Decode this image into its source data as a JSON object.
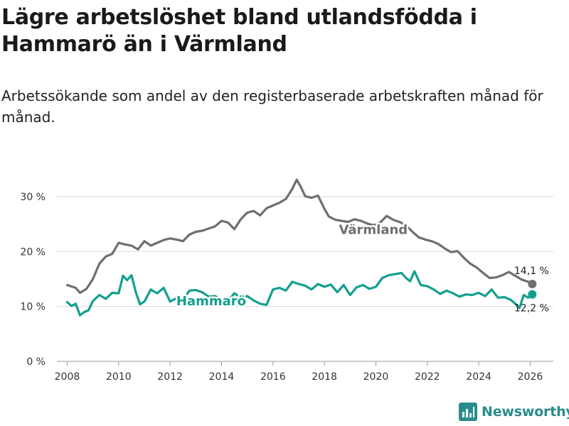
{
  "header": {
    "title": "Lägre arbetslöshet bland utlandsfödda i Hammarö än i Värmland",
    "subtitle": "Arbetssökande som andel av den registerbaserade arbetskraften månad för månad."
  },
  "brand": {
    "name": "Newsworthy",
    "color": "#2a8c8c"
  },
  "chart_data": {
    "type": "line",
    "title": "Lägre arbetslöshet bland utlandsfödda i Hammarö än i Värmland",
    "xlabel": "",
    "ylabel": "",
    "xlim": [
      2007.6,
      2026.9
    ],
    "ylim": [
      0,
      33.5
    ],
    "xticks": [
      2008,
      2010,
      2012,
      2014,
      2016,
      2018,
      2020,
      2022,
      2024,
      2026
    ],
    "xtick_labels": [
      "2008",
      "2010",
      "2012",
      "2014",
      "2016",
      "2018",
      "2020",
      "2022",
      "2024",
      "2026"
    ],
    "yticks": [
      0,
      10,
      20,
      30
    ],
    "ytick_labels": [
      "0 %",
      "10 %",
      "20 %",
      "30 %"
    ],
    "grid": true,
    "series": [
      {
        "name": "Värmland",
        "color": "#6e6e73",
        "end_label": "14,1 %",
        "x": [
          2008.0,
          2008.33,
          2008.5,
          2008.75,
          2009.0,
          2009.25,
          2009.5,
          2009.75,
          2010.0,
          2010.25,
          2010.5,
          2010.75,
          2011.0,
          2011.25,
          2011.5,
          2011.75,
          2012.0,
          2012.25,
          2012.5,
          2012.75,
          2013.0,
          2013.25,
          2013.5,
          2013.75,
          2014.0,
          2014.25,
          2014.5,
          2014.75,
          2015.0,
          2015.25,
          2015.5,
          2015.75,
          2016.0,
          2016.25,
          2016.5,
          2016.75,
          2016.92,
          2017.08,
          2017.25,
          2017.5,
          2017.75,
          2018.0,
          2018.17,
          2018.42,
          2018.67,
          2018.92,
          2019.17,
          2019.42,
          2019.67,
          2019.92,
          2020.17,
          2020.42,
          2020.67,
          2020.92,
          2021.17,
          2021.42,
          2021.67,
          2021.92,
          2022.17,
          2022.42,
          2022.67,
          2022.92,
          2023.17,
          2023.42,
          2023.67,
          2023.92,
          2024.17,
          2024.42,
          2024.67,
          2024.92,
          2025.17,
          2025.42,
          2025.67,
          2025.92,
          2026.08
        ],
        "values": [
          13.9,
          13.4,
          12.5,
          13.2,
          15.0,
          17.8,
          19.1,
          19.6,
          21.6,
          21.3,
          21.1,
          20.4,
          21.9,
          21.1,
          21.6,
          22.1,
          22.4,
          22.2,
          21.9,
          23.1,
          23.6,
          23.8,
          24.2,
          24.6,
          25.6,
          25.3,
          24.1,
          25.9,
          27.1,
          27.4,
          26.6,
          27.9,
          28.4,
          28.9,
          29.6,
          31.4,
          33.1,
          31.8,
          30.1,
          29.8,
          30.2,
          27.8,
          26.4,
          25.8,
          25.6,
          25.4,
          25.9,
          25.6,
          25.1,
          24.8,
          25.3,
          26.5,
          25.8,
          25.4,
          24.8,
          23.6,
          22.6,
          22.2,
          21.9,
          21.4,
          20.6,
          19.9,
          20.1,
          18.9,
          17.8,
          17.1,
          16.1,
          15.2,
          15.3,
          15.7,
          16.3,
          15.6,
          14.9,
          14.5,
          14.1
        ]
      },
      {
        "name": "Hammarö",
        "color": "#12a08e",
        "end_label": "12,2 %",
        "x": [
          2008.0,
          2008.17,
          2008.33,
          2008.5,
          2008.67,
          2008.83,
          2009.0,
          2009.25,
          2009.5,
          2009.75,
          2010.0,
          2010.17,
          2010.33,
          2010.5,
          2010.67,
          2010.83,
          2011.0,
          2011.25,
          2011.5,
          2011.75,
          2012.0,
          2012.25,
          2012.5,
          2012.75,
          2013.0,
          2013.25,
          2013.5,
          2013.75,
          2014.0,
          2014.25,
          2014.5,
          2014.75,
          2015.0,
          2015.25,
          2015.5,
          2015.75,
          2016.0,
          2016.25,
          2016.5,
          2016.75,
          2017.0,
          2017.25,
          2017.5,
          2017.75,
          2018.0,
          2018.25,
          2018.5,
          2018.75,
          2019.0,
          2019.25,
          2019.5,
          2019.75,
          2020.0,
          2020.25,
          2020.5,
          2020.75,
          2021.0,
          2021.17,
          2021.33,
          2021.5,
          2021.75,
          2022.0,
          2022.25,
          2022.5,
          2022.75,
          2023.0,
          2023.25,
          2023.5,
          2023.75,
          2024.0,
          2024.25,
          2024.5,
          2024.75,
          2025.0,
          2025.25,
          2025.42,
          2025.58,
          2025.75,
          2025.92,
          2026.08
        ],
        "values": [
          10.8,
          10.1,
          10.5,
          8.4,
          9.0,
          9.3,
          11.0,
          12.1,
          11.4,
          12.5,
          12.4,
          15.6,
          14.8,
          15.7,
          12.6,
          10.4,
          10.9,
          13.1,
          12.4,
          13.4,
          10.9,
          11.5,
          11.1,
          12.9,
          13.0,
          12.6,
          11.8,
          11.9,
          11.2,
          11.0,
          12.4,
          11.6,
          11.9,
          11.1,
          10.5,
          10.3,
          13.1,
          13.4,
          12.9,
          14.5,
          14.1,
          13.8,
          13.1,
          14.1,
          13.6,
          14.0,
          12.6,
          13.9,
          12.1,
          13.5,
          13.9,
          13.2,
          13.6,
          15.2,
          15.7,
          15.9,
          16.1,
          15.2,
          14.6,
          16.4,
          13.9,
          13.7,
          13.1,
          12.3,
          12.9,
          12.4,
          11.8,
          12.2,
          12.1,
          12.5,
          11.9,
          13.1,
          11.6,
          11.7,
          11.2,
          10.5,
          9.7,
          12.1,
          11.6,
          12.2
        ]
      }
    ],
    "annotations": [
      {
        "text": "Värmland",
        "series": "Värmland",
        "x": 2019.9
      },
      {
        "text": "Hammarö",
        "series": "Hammarö",
        "x": 2013.6
      }
    ]
  }
}
